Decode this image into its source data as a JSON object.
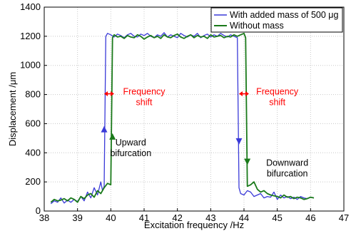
{
  "chart_data": {
    "type": "line",
    "title": "",
    "xlabel": "Excitation frequency /Hz",
    "ylabel": "Displacement /μm",
    "xlim": [
      38,
      47
    ],
    "ylim": [
      0,
      1400
    ],
    "xticks": [
      "38",
      "39",
      "40",
      "41",
      "42",
      "43",
      "44",
      "45",
      "46",
      "47"
    ],
    "yticks": [
      "0",
      "200",
      "400",
      "600",
      "800",
      "1000",
      "1200",
      "1400"
    ],
    "grid": true,
    "legend_position": "top-right",
    "series": [
      {
        "name": "With added mass of 500 μg",
        "color": "#3a3ad8",
        "x": [
          38.2,
          38.3,
          38.4,
          38.5,
          38.6,
          38.7,
          38.8,
          38.9,
          39.0,
          39.1,
          39.2,
          39.3,
          39.4,
          39.5,
          39.6,
          39.7,
          39.75,
          39.8,
          39.85,
          39.9,
          40.0,
          40.1,
          40.2,
          40.3,
          40.4,
          40.5,
          40.6,
          40.7,
          40.8,
          40.9,
          41.0,
          41.1,
          41.2,
          41.3,
          41.4,
          41.5,
          41.6,
          41.7,
          41.8,
          41.9,
          42.0,
          42.1,
          42.2,
          42.3,
          42.4,
          42.5,
          42.6,
          42.7,
          42.8,
          42.9,
          43.0,
          43.1,
          43.2,
          43.3,
          43.4,
          43.5,
          43.6,
          43.7,
          43.8,
          43.85,
          43.9,
          44.0,
          44.1,
          44.2,
          44.3,
          44.4,
          44.5,
          44.6,
          44.7,
          44.8,
          44.9,
          45.0,
          45.1,
          45.2,
          45.3,
          45.4,
          45.5,
          45.6,
          45.7,
          45.8,
          45.9,
          46.0,
          46.1
        ],
        "y": [
          50,
          70,
          60,
          90,
          55,
          75,
          60,
          80,
          65,
          100,
          70,
          130,
          90,
          160,
          110,
          200,
          140,
          170,
          1200,
          1220,
          1210,
          1195,
          1215,
          1205,
          1190,
          1210,
          1220,
          1200,
          1195,
          1215,
          1205,
          1220,
          1200,
          1190,
          1210,
          1200,
          1225,
          1195,
          1210,
          1200,
          1190,
          1220,
          1205,
          1195,
          1210,
          1200,
          1220,
          1190,
          1205,
          1215,
          1195,
          1210,
          1200,
          1220,
          1205,
          1195,
          1210,
          1200,
          1190,
          160,
          120,
          110,
          140,
          130,
          100,
          110,
          120,
          90,
          100,
          95,
          130,
          80,
          110,
          90,
          100,
          85,
          95,
          80,
          100,
          90,
          85,
          95,
          90
        ]
      },
      {
        "name": "Without mass",
        "color": "#1a7a1a",
        "x": [
          38.2,
          38.3,
          38.4,
          38.5,
          38.6,
          38.7,
          38.8,
          38.9,
          39.0,
          39.1,
          39.2,
          39.3,
          39.4,
          39.5,
          39.6,
          39.7,
          39.8,
          39.9,
          40.0,
          40.05,
          40.1,
          40.2,
          40.3,
          40.4,
          40.5,
          40.6,
          40.7,
          40.8,
          40.9,
          41.0,
          41.1,
          41.2,
          41.3,
          41.4,
          41.5,
          41.6,
          41.7,
          41.8,
          41.9,
          42.0,
          42.1,
          42.2,
          42.3,
          42.4,
          42.5,
          42.6,
          42.7,
          42.8,
          42.9,
          43.0,
          43.1,
          43.2,
          43.3,
          43.4,
          43.5,
          43.6,
          43.7,
          43.8,
          43.9,
          44.0,
          44.05,
          44.1,
          44.2,
          44.3,
          44.4,
          44.5,
          44.6,
          44.7,
          44.8,
          44.9,
          45.0,
          45.1,
          45.2,
          45.3,
          45.4,
          45.5,
          45.6,
          45.7,
          45.8,
          45.9,
          46.0,
          46.1
        ],
        "y": [
          60,
          80,
          70,
          75,
          85,
          70,
          90,
          80,
          60,
          100,
          85,
          110,
          120,
          95,
          140,
          120,
          160,
          190,
          180,
          1190,
          1210,
          1195,
          1200,
          1185,
          1205,
          1195,
          1190,
          1210,
          1200,
          1180,
          1195,
          1205,
          1190,
          1200,
          1185,
          1210,
          1195,
          1190,
          1205,
          1215,
          1195,
          1185,
          1200,
          1210,
          1190,
          1205,
          1195,
          1200,
          1185,
          1210,
          1195,
          1200,
          1205,
          1190,
          1200,
          1195,
          1210,
          1200,
          1210,
          1220,
          1190,
          170,
          180,
          200,
          150,
          130,
          140,
          120,
          110,
          105,
          100,
          90,
          110,
          95,
          100,
          85,
          95,
          90,
          80,
          85,
          95,
          90
        ]
      }
    ],
    "annotations": [
      {
        "text": "Frequency\nshift",
        "x": 41.0,
        "y": 800,
        "color": "#ff0000"
      },
      {
        "text": "Frequency\nshift",
        "x": 45.0,
        "y": 800,
        "color": "#ff0000"
      },
      {
        "text": "Upward\nbifurcation",
        "x": 40.6,
        "y": 450,
        "color": "#000000"
      },
      {
        "text": "Downward\nbifurcation",
        "x": 45.3,
        "y": 310,
        "color": "#000000"
      }
    ]
  }
}
